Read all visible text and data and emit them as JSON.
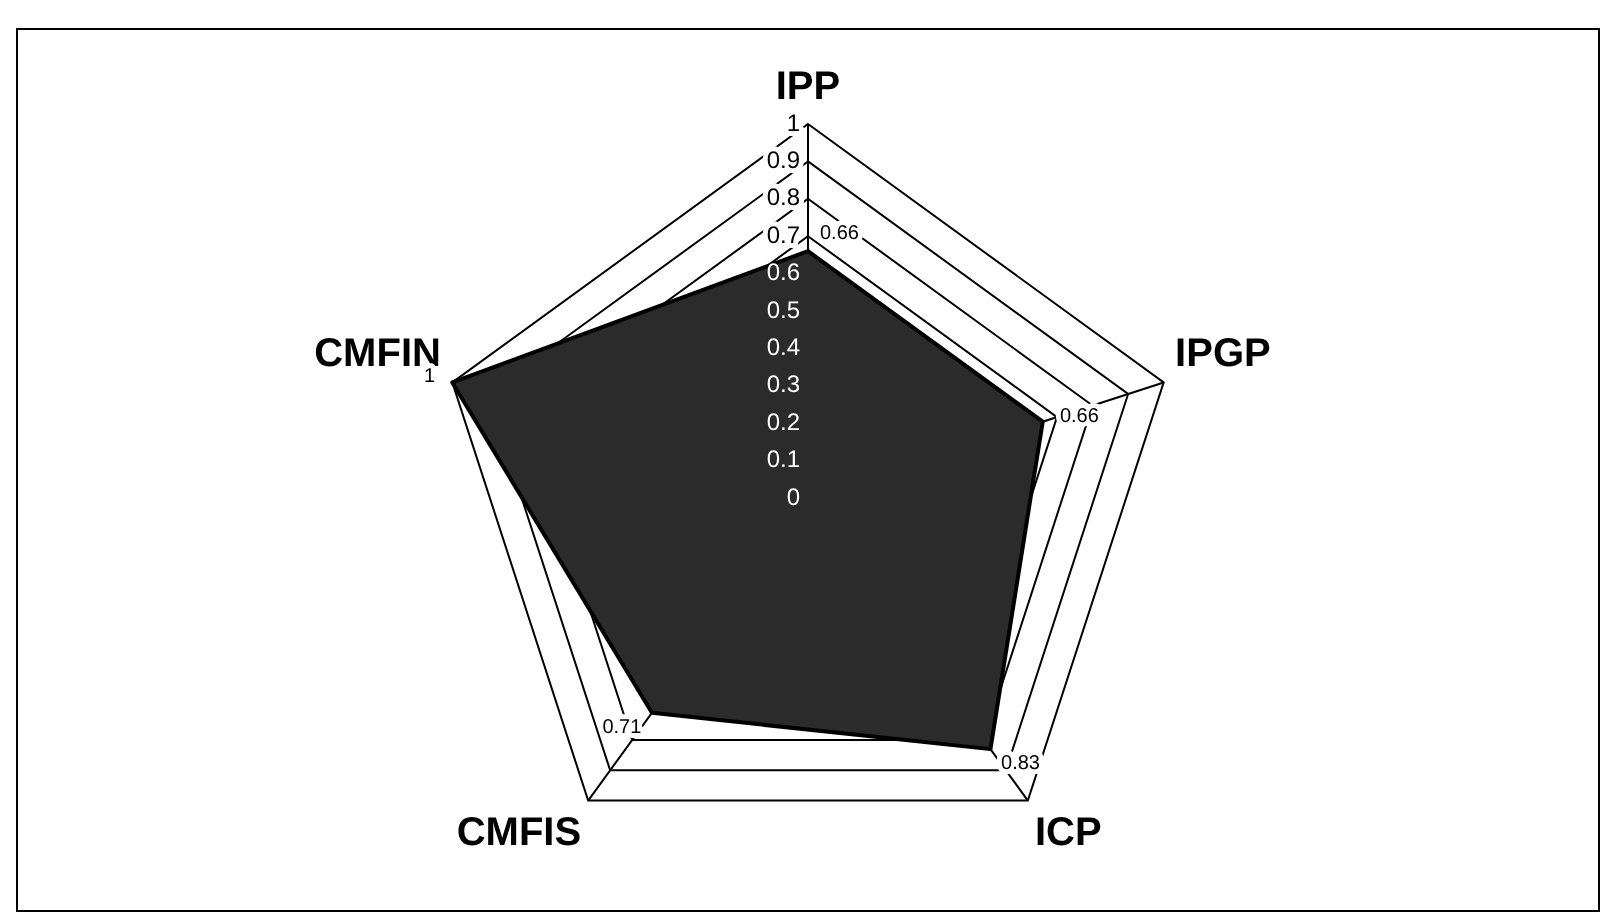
{
  "chart_data": {
    "type": "radar",
    "categories": [
      "IPP",
      "IPGP",
      "ICP",
      "CMFIS",
      "CMFIN"
    ],
    "series": [
      {
        "color": "#2b2b2b",
        "values": [
          0.66,
          0.66,
          0.83,
          0.71,
          1
        ]
      }
    ],
    "ylim": [
      0,
      1
    ],
    "yticks": [
      0,
      0.1,
      0.2,
      0.3,
      0.4,
      0.5,
      0.6,
      0.7,
      0.8,
      0.9,
      1
    ],
    "grid": true,
    "data_labels": true,
    "marker": "none",
    "legend": false
  }
}
